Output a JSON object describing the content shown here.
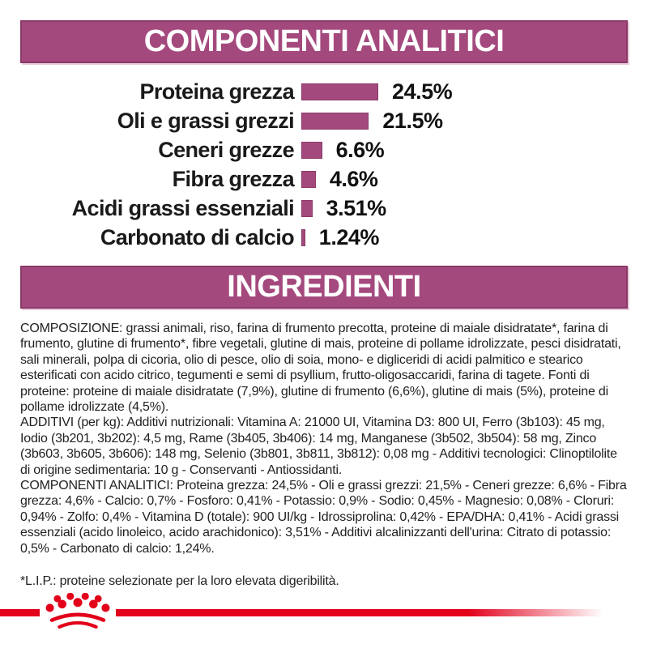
{
  "analytical_section": {
    "title": "COMPONENTI ANALITICI"
  },
  "chart_data": {
    "type": "bar",
    "orientation": "horizontal",
    "title": "COMPONENTI ANALITICI",
    "categories": [
      "Proteina grezza",
      "Oli e grassi grezzi",
      "Ceneri grezze",
      "Fibra grezza",
      "Acidi grassi essenziali",
      "Carbonato di calcio"
    ],
    "values": [
      24.5,
      21.5,
      6.6,
      4.6,
      3.51,
      1.24
    ],
    "value_labels": [
      "24.5%",
      "21.5%",
      "6.6%",
      "4.6%",
      "3.51%",
      "1.24%"
    ],
    "xlim": [
      0,
      25
    ],
    "grid": false,
    "legend": false,
    "bar_color": "#a4497d"
  },
  "ingredients_section": {
    "title": "INGREDIENTI",
    "composition": "COMPOSIZIONE: grassi animali, riso, farina di frumento precotta, proteine di maiale disidratate*, farina di frumento, glutine di frumento*, fibre vegetali, glutine di mais, proteine di pollame idrolizzate, pesci disidratati, sali minerali, polpa di cicoria, olio di pesce, olio di soia, mono- e digliceridi di acidi palmitico e stearico esterificati con acido citrico, tegumenti e semi di psyllium, frutto-oligosaccaridi, farina di tagete. Fonti di proteine: proteine di maiale disidratate (7,9%), glutine di frumento (6,6%), glutine di mais (5%), proteine di pollame idrolizzate (4,5%).",
    "additives": "ADDITIVI (per kg): Additivi nutrizionali: Vitamina A: 21000 UI, Vitamina D3: 800 UI, Ferro (3b103): 45 mg, Iodio (3b201, 3b202): 4,5 mg, Rame (3b405, 3b406): 14 mg, Manganese (3b502, 3b504): 58 mg, Zinco (3b603, 3b605, 3b606): 148 mg, Selenio (3b801, 3b811, 3b812): 0,08 mg - Additivi tecnologici: Clinoptilolite di origine sedimentaria: 10 g - Conservanti - Antiossidanti.",
    "analytical_constituents": "COMPONENTI ANALITICI: Proteina grezza: 24,5% - Oli e grassi grezzi: 21,5% - Ceneri grezze: 6,6% - Fibra grezza: 4,6% - Calcio: 0,7% - Fosforo: 0,41% - Potassio: 0,9% - Sodio: 0,45% - Magnesio: 0,08% - Cloruri: 0,94% - Zolfo: 0,4% - Vitamina D (totale): 900 UI/kg - Idrossiprolina: 0,42% - EPA/DHA: 0,41% - Acidi grassi essenziali (acido linoleico, acido arachidonico): 3,51% - Additivi alcalinizzanti dell'urina: Citrato di potassio: 0,5% - Carbonato di calcio: 1,24%.",
    "footnote": "*L.I.P.: proteine selezionate per la loro elevata digeribilità."
  },
  "branding": {
    "logo": "royal-canin-crown",
    "brand_red": "#e2001a"
  },
  "colors": {
    "banner_magenta": "#a4497d",
    "banner_border": "#8a3a6a",
    "bar_fill": "#a4497d",
    "text_dark": "#1f1f1f"
  }
}
